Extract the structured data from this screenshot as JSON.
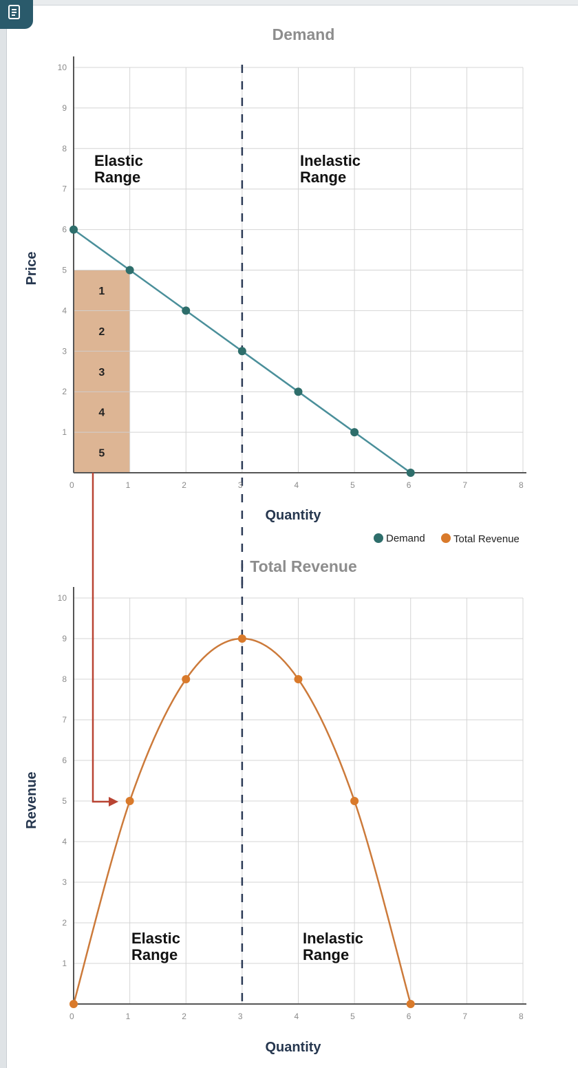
{
  "colors": {
    "demand": "#2e6e6b",
    "demand_line": "#4a8f9a",
    "revenue": "#d97a2b",
    "revenue_line": "#cc7a3a",
    "area": "#ddb594",
    "arrow": "#b94433",
    "dashed": "#2b3a55",
    "grid": "#d4d4d4",
    "axis": "#555555"
  },
  "toolbar": {
    "doc_icon": "document-icon"
  },
  "legend": {
    "items": [
      {
        "label": "Demand",
        "color": "#2e6e6b"
      },
      {
        "label": "Total Revenue",
        "color": "#d97a2b"
      }
    ]
  },
  "chart_data": [
    {
      "type": "line",
      "title": "Demand",
      "xlabel": "Quantity",
      "ylabel": "Price",
      "xlim": [
        0,
        8
      ],
      "ylim": [
        0,
        10
      ],
      "x_ticks": [
        "0",
        "1",
        "2",
        "3",
        "4",
        "5",
        "6",
        "7",
        "8"
      ],
      "y_ticks": [
        "1",
        "2",
        "3",
        "4",
        "5",
        "6",
        "7",
        "8",
        "9",
        "10"
      ],
      "grid": true,
      "series": [
        {
          "name": "Demand",
          "x": [
            0,
            1,
            2,
            3,
            4,
            5,
            6
          ],
          "y": [
            6,
            5,
            4,
            3,
            2,
            1,
            0
          ]
        }
      ],
      "divider_x": 3,
      "range_labels": [
        {
          "line1": "Elastic",
          "line2": "Range"
        },
        {
          "line1": "Inelastic",
          "line2": "Range"
        }
      ],
      "revenue_area": {
        "quantity": 1,
        "price": 5,
        "segments": [
          "1",
          "2",
          "3",
          "4",
          "5"
        ]
      }
    },
    {
      "type": "line",
      "title": "Total Revenue",
      "xlabel": "Quantity",
      "ylabel": "Revenue",
      "xlim": [
        0,
        8
      ],
      "ylim": [
        0,
        10
      ],
      "x_ticks": [
        "0",
        "1",
        "2",
        "3",
        "4",
        "5",
        "6",
        "7",
        "8"
      ],
      "y_ticks": [
        "1",
        "2",
        "3",
        "4",
        "5",
        "6",
        "7",
        "8",
        "9",
        "10"
      ],
      "grid": true,
      "series": [
        {
          "name": "Total Revenue",
          "x": [
            0,
            1,
            2,
            3,
            4,
            5,
            6
          ],
          "y": [
            0,
            5,
            8,
            9,
            8,
            5,
            0
          ]
        }
      ],
      "divider_x": 3,
      "range_labels": [
        {
          "line1": "Elastic",
          "line2": "Range"
        },
        {
          "line1": "Inelastic",
          "line2": "Range"
        }
      ]
    }
  ]
}
